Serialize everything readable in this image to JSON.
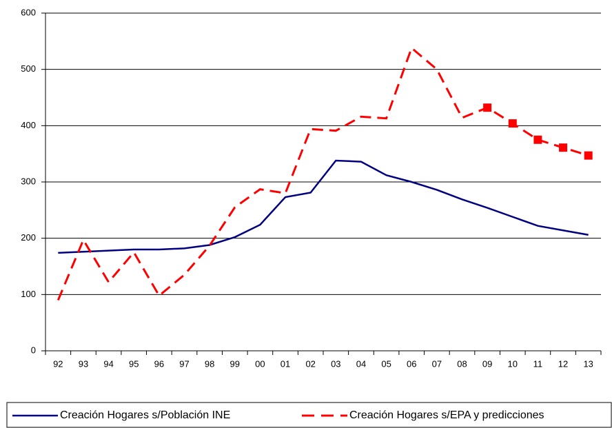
{
  "chart_data": {
    "type": "line",
    "categories": [
      "92",
      "93",
      "94",
      "95",
      "96",
      "97",
      "98",
      "99",
      "00",
      "01",
      "02",
      "03",
      "04",
      "05",
      "06",
      "07",
      "08",
      "09",
      "10",
      "11",
      "12",
      "13"
    ],
    "series": [
      {
        "name": "Creación Hogares s/Población INE",
        "color": "#000080",
        "dash": "solid",
        "values": [
          174,
          176,
          178,
          180,
          180,
          182,
          188,
          202,
          224,
          273,
          281,
          338,
          336,
          312,
          300,
          286,
          269,
          254,
          238,
          222,
          214,
          206
        ]
      },
      {
        "name": "Creación Hogares s/EPA y predicciones",
        "color": "#ff0000",
        "dash": "dashed",
        "values": [
          90,
          197,
          122,
          175,
          98,
          135,
          187,
          255,
          287,
          280,
          394,
          391,
          416,
          413,
          538,
          500,
          414,
          432,
          404,
          375,
          361,
          347
        ],
        "markers": [
          false,
          false,
          false,
          false,
          false,
          false,
          false,
          false,
          false,
          false,
          false,
          false,
          false,
          false,
          false,
          false,
          false,
          true,
          true,
          true,
          true,
          true
        ]
      }
    ],
    "ylim": [
      0,
      600
    ],
    "yticks": [
      0,
      100,
      200,
      300,
      400,
      500,
      600
    ],
    "grid": true,
    "legend": "bottom"
  }
}
